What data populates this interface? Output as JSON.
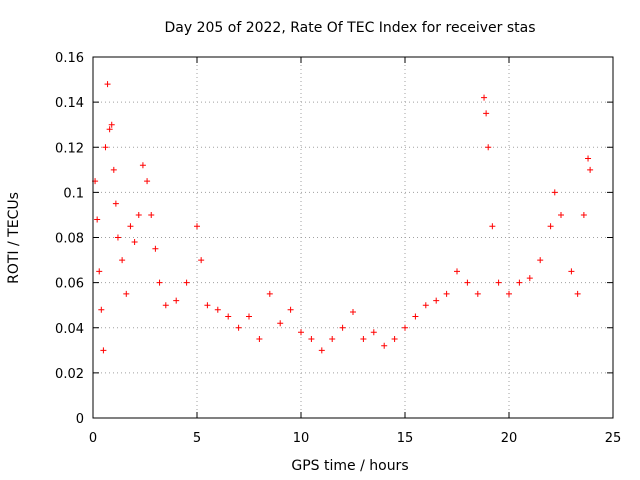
{
  "chart_data": {
    "type": "scatter",
    "title": "Day 205 of 2022, Rate Of TEC Index for receiver stas",
    "xlabel": "GPS time / hours",
    "ylabel": "ROTI / TECUs",
    "xlim": [
      0,
      25
    ],
    "ylim": [
      0,
      0.16
    ],
    "xticks": [
      0,
      5,
      10,
      15,
      20,
      25
    ],
    "xtick_labels": [
      "0",
      "5",
      "10",
      "15",
      "20",
      "25"
    ],
    "yticks": [
      0,
      0.02,
      0.04,
      0.06,
      0.08,
      0.1,
      0.12,
      0.14,
      0.16
    ],
    "ytick_labels": [
      "0",
      "0.02",
      "0.04",
      "0.06",
      "0.08",
      "0.1",
      "0.12",
      "0.14",
      "0.16"
    ],
    "grid": true,
    "legend": "none",
    "marker": "+",
    "color": "#ff0000",
    "series": [
      {
        "values": [
          [
            0.1,
            0.105
          ],
          [
            0.2,
            0.088
          ],
          [
            0.3,
            0.065
          ],
          [
            0.4,
            0.048
          ],
          [
            0.5,
            0.03
          ],
          [
            0.6,
            0.12
          ],
          [
            0.7,
            0.148
          ],
          [
            0.8,
            0.128
          ],
          [
            0.9,
            0.13
          ],
          [
            1.0,
            0.11
          ],
          [
            1.1,
            0.095
          ],
          [
            1.2,
            0.08
          ],
          [
            1.4,
            0.07
          ],
          [
            1.6,
            0.055
          ],
          [
            1.8,
            0.085
          ],
          [
            2.0,
            0.078
          ],
          [
            2.2,
            0.09
          ],
          [
            2.4,
            0.112
          ],
          [
            2.6,
            0.105
          ],
          [
            2.8,
            0.09
          ],
          [
            3.0,
            0.075
          ],
          [
            3.2,
            0.06
          ],
          [
            3.5,
            0.05
          ],
          [
            4.0,
            0.052
          ],
          [
            4.5,
            0.06
          ],
          [
            5.0,
            0.085
          ],
          [
            5.2,
            0.07
          ],
          [
            5.5,
            0.05
          ],
          [
            6.0,
            0.048
          ],
          [
            6.5,
            0.045
          ],
          [
            7.0,
            0.04
          ],
          [
            7.5,
            0.045
          ],
          [
            8.0,
            0.035
          ],
          [
            8.5,
            0.055
          ],
          [
            9.0,
            0.042
          ],
          [
            9.5,
            0.048
          ],
          [
            10.0,
            0.038
          ],
          [
            10.5,
            0.035
          ],
          [
            11.0,
            0.03
          ],
          [
            11.5,
            0.035
          ],
          [
            12.0,
            0.04
          ],
          [
            12.5,
            0.047
          ],
          [
            13.0,
            0.035
          ],
          [
            13.5,
            0.038
          ],
          [
            14.0,
            0.032
          ],
          [
            14.5,
            0.035
          ],
          [
            15.0,
            0.04
          ],
          [
            15.5,
            0.045
          ],
          [
            16.0,
            0.05
          ],
          [
            16.5,
            0.052
          ],
          [
            17.0,
            0.055
          ],
          [
            17.5,
            0.065
          ],
          [
            18.0,
            0.06
          ],
          [
            18.5,
            0.055
          ],
          [
            18.8,
            0.142
          ],
          [
            18.9,
            0.135
          ],
          [
            19.0,
            0.12
          ],
          [
            19.2,
            0.085
          ],
          [
            19.5,
            0.06
          ],
          [
            20.0,
            0.055
          ],
          [
            20.5,
            0.06
          ],
          [
            21.0,
            0.062
          ],
          [
            21.5,
            0.07
          ],
          [
            22.0,
            0.085
          ],
          [
            22.2,
            0.1
          ],
          [
            22.5,
            0.09
          ],
          [
            23.0,
            0.065
          ],
          [
            23.3,
            0.055
          ],
          [
            23.6,
            0.09
          ],
          [
            23.8,
            0.115
          ],
          [
            23.9,
            0.11
          ]
        ]
      }
    ]
  }
}
